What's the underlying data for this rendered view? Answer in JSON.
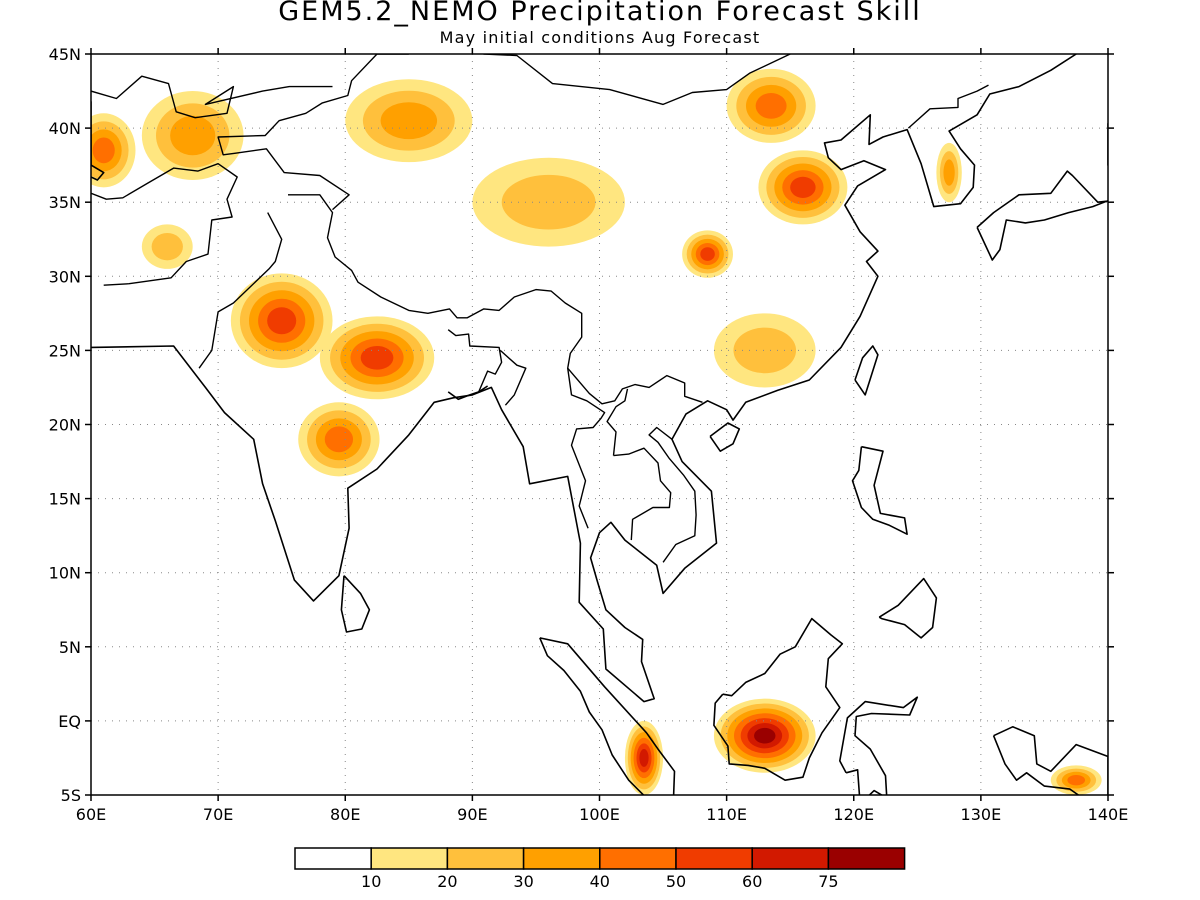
{
  "header": {
    "title": "GEM5.2_NEMO Precipitation Forecast Skill",
    "subtitle": "May initial conditions  Aug Forecast"
  },
  "map": {
    "region": "South and East Asia",
    "lon_range": [
      60,
      140
    ],
    "lat_range": [
      -5,
      45
    ],
    "gridlines": "dotted",
    "lat_ticks": [
      {
        "value": 45,
        "label": "45N"
      },
      {
        "value": 40,
        "label": "40N"
      },
      {
        "value": 35,
        "label": "35N"
      },
      {
        "value": 30,
        "label": "30N"
      },
      {
        "value": 25,
        "label": "25N"
      },
      {
        "value": 20,
        "label": "20N"
      },
      {
        "value": 15,
        "label": "15N"
      },
      {
        "value": 10,
        "label": "10N"
      },
      {
        "value": 5,
        "label": "5N"
      },
      {
        "value": 0,
        "label": "EQ"
      },
      {
        "value": -5,
        "label": "5S"
      }
    ],
    "lon_ticks": [
      {
        "value": 60,
        "label": "60E"
      },
      {
        "value": 70,
        "label": "70E"
      },
      {
        "value": 80,
        "label": "80E"
      },
      {
        "value": 90,
        "label": "90E"
      },
      {
        "value": 100,
        "label": "100E"
      },
      {
        "value": 110,
        "label": "110E"
      },
      {
        "value": 120,
        "label": "120E"
      },
      {
        "value": 130,
        "label": "130E"
      },
      {
        "value": 140,
        "label": "140E"
      }
    ],
    "skill_regions": [
      {
        "name": "central-india",
        "lon": 75,
        "lat": 27,
        "rx": 4,
        "ry": 3.2,
        "peak": 50
      },
      {
        "name": "gangetic-plain",
        "lon": 82.5,
        "lat": 24.5,
        "rx": 4.5,
        "ry": 2.8,
        "peak": 50
      },
      {
        "name": "deccan",
        "lon": 79.5,
        "lat": 19,
        "rx": 3.2,
        "ry": 2.5,
        "peak": 40
      },
      {
        "name": "central-china",
        "lon": 116,
        "lat": 36,
        "rx": 3.5,
        "ry": 2.5,
        "peak": 50
      },
      {
        "name": "sichuan",
        "lon": 108.5,
        "lat": 31.5,
        "rx": 2,
        "ry": 1.6,
        "peak": 50
      },
      {
        "name": "mongolia",
        "lon": 113.5,
        "lat": 41.5,
        "rx": 3.5,
        "ry": 2.5,
        "peak": 40
      },
      {
        "name": "tibet-north",
        "lon": 85,
        "lat": 40.5,
        "rx": 5,
        "ry": 2.8,
        "peak": 30
      },
      {
        "name": "caspian",
        "lon": 61,
        "lat": 38.5,
        "rx": 2.5,
        "ry": 2.5,
        "peak": 40
      },
      {
        "name": "central-asia",
        "lon": 68,
        "lat": 39.5,
        "rx": 4,
        "ry": 3,
        "peak": 30
      },
      {
        "name": "east-china-south",
        "lon": 113,
        "lat": 25,
        "rx": 4,
        "ry": 2.5,
        "peak": 20
      },
      {
        "name": "tibet-plateau",
        "lon": 96,
        "lat": 35,
        "rx": 6,
        "ry": 3,
        "peak": 20
      },
      {
        "name": "korea",
        "lon": 127.5,
        "lat": 37,
        "rx": 1,
        "ry": 2,
        "peak": 30
      },
      {
        "name": "borneo",
        "lon": 113,
        "lat": -1,
        "rx": 4,
        "ry": 2.5,
        "peak": 75
      },
      {
        "name": "sumatra-south",
        "lon": 103.5,
        "lat": -2.5,
        "rx": 1.5,
        "ry": 2.5,
        "peak": 60
      },
      {
        "name": "new-guinea",
        "lon": 137.5,
        "lat": -4,
        "rx": 2,
        "ry": 1,
        "peak": 40
      },
      {
        "name": "afghanistan",
        "lon": 66,
        "lat": 32,
        "rx": 2,
        "ry": 1.5,
        "peak": 20
      }
    ]
  },
  "colorbar": {
    "colors": [
      "#ffffff",
      "#ffe680",
      "#ffc03c",
      "#ffa000",
      "#ff6f00",
      "#f03c00",
      "#d21900",
      "#9a0000"
    ],
    "labels": [
      "10",
      "20",
      "30",
      "40",
      "50",
      "60",
      "75"
    ]
  }
}
